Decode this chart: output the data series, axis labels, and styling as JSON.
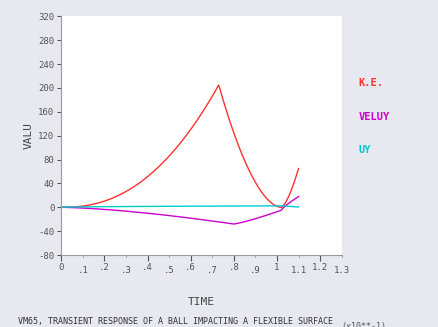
{
  "title": "VM65, TRANSIENT RESPONSE OF A BALL IMPACTING A FLEXIBLE SURFACE",
  "xlabel": "TIME",
  "ylabel": "VALU",
  "x_note": "(x10**-1)",
  "xlim": [
    0,
    1.3
  ],
  "ylim": [
    -80,
    320
  ],
  "yticks": [
    -80,
    -40,
    0,
    40,
    80,
    120,
    160,
    200,
    240,
    280,
    320
  ],
  "xticks_major": [
    0,
    0.2,
    0.4,
    0.6,
    0.8,
    1.0,
    1.2
  ],
  "xticks_minor": [
    0.1,
    0.3,
    0.5,
    0.7,
    0.9,
    1.1,
    1.3
  ],
  "xtick_labels_major": [
    "0",
    ".2",
    ".4",
    ".6",
    ".8",
    "1",
    "1.2"
  ],
  "xtick_labels_minor": [
    ".1",
    ".3",
    ".5",
    ".7",
    ".9",
    "1.1",
    "1.3"
  ],
  "legend": [
    "K.E.",
    "VELUY",
    "UY"
  ],
  "legend_colors": [
    "#ff3030",
    "#cc00cc",
    "#00cccc"
  ],
  "ke_color": "#ff3030",
  "vel_color": "#cc00cc",
  "uy_color": "#00cccc",
  "background_color": "#e8e8f0",
  "plot_bg": "#ffffff",
  "spine_color": "#999999",
  "tick_color": "#555555",
  "label_color": "#444444"
}
